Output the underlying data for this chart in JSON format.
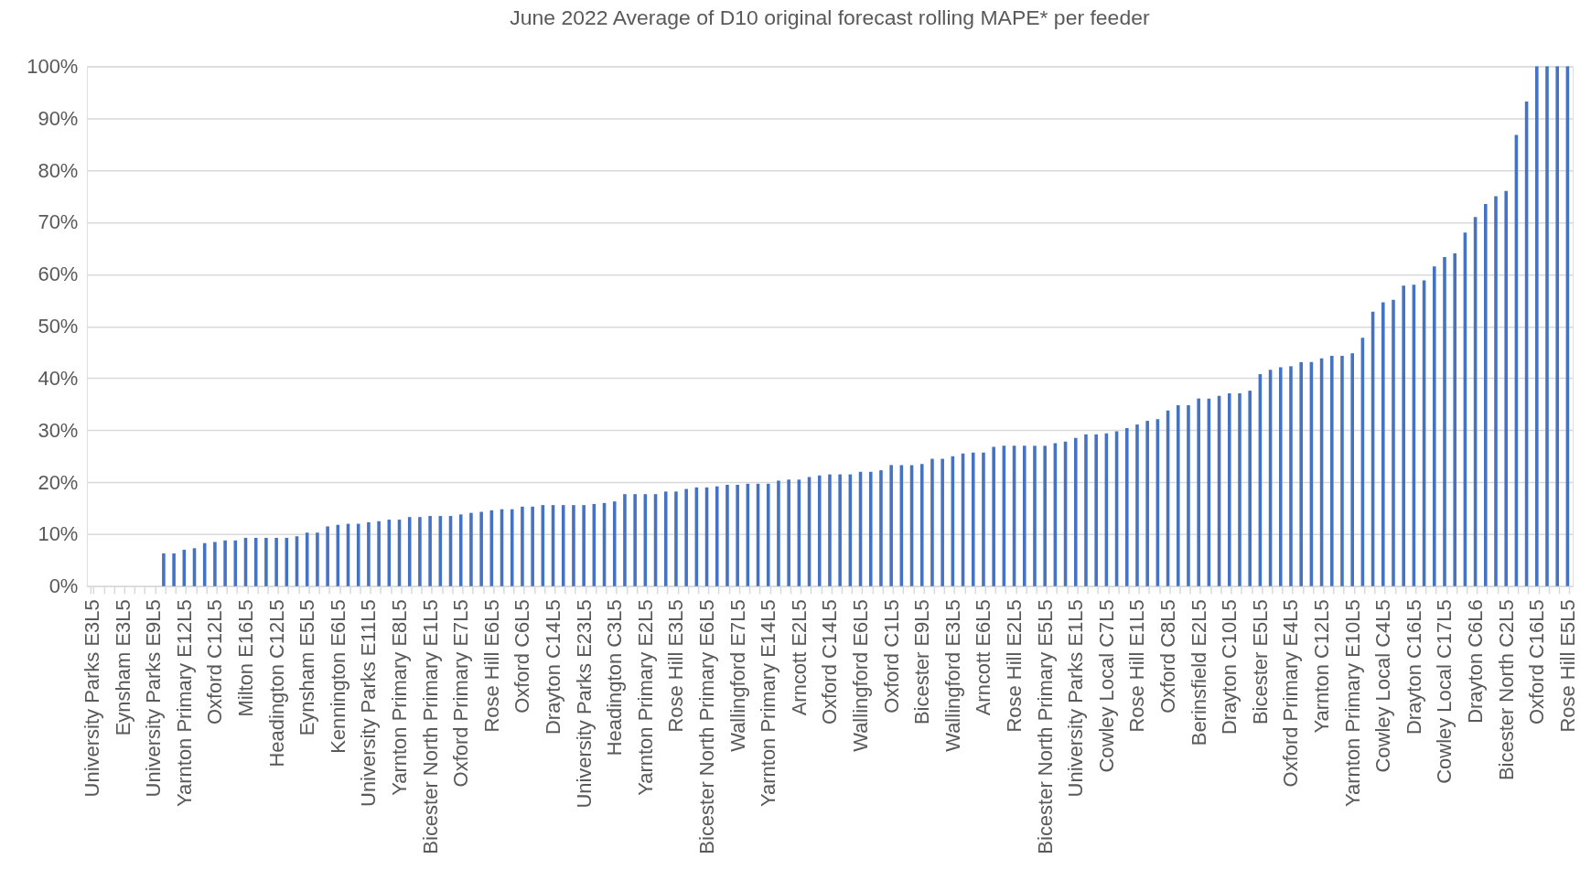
{
  "chart_data": {
    "type": "bar",
    "title": "June 2022 Average of D10 original forecast rolling MAPE* per feeder",
    "categories": [
      "University Parks E3L5",
      null,
      null,
      "Eynsham E3L5",
      null,
      null,
      "University Parks E9L5",
      null,
      null,
      "Yarnton Primary E12L5",
      null,
      null,
      "Oxford C12L5",
      null,
      null,
      "Milton E16L5",
      null,
      null,
      "Headington C12L5",
      null,
      null,
      "Eynsham E5L5",
      null,
      null,
      "Kennington E6L5",
      null,
      null,
      "University Parks E11L5",
      null,
      null,
      "Yarnton Primary E8L5",
      null,
      null,
      "Bicester North Primary E1L5",
      null,
      null,
      "Oxford Primary E7L5",
      null,
      null,
      "Rose Hill E6L5",
      null,
      null,
      "Oxford C6L5",
      null,
      null,
      "Drayton C14L5",
      null,
      null,
      "University Parks E23L5",
      null,
      null,
      "Headington C3L5",
      null,
      null,
      "Yarnton Primary E2L5",
      null,
      null,
      "Rose Hill E3L5",
      null,
      null,
      "Bicester North Primary E6L5",
      null,
      null,
      "Wallingford E7L5",
      null,
      null,
      "Yarnton Primary E14L5",
      null,
      null,
      "Arncott E2L5",
      null,
      null,
      "Oxford C14L5",
      null,
      null,
      "Wallingford E6L5",
      null,
      null,
      "Oxford C1L5",
      null,
      null,
      "Bicester E9L5",
      null,
      null,
      "Wallingford E3L5",
      null,
      null,
      "Arncott E6L5",
      null,
      null,
      "Rose Hill E2L5",
      null,
      null,
      "Bicester North Primary E5L5",
      null,
      null,
      "University Parks E1L5",
      null,
      null,
      "Cowley Local C7L5",
      null,
      null,
      "Rose Hill E1L5",
      null,
      null,
      "Oxford C8L5",
      null,
      null,
      "Berinsfield E2L5",
      null,
      null,
      "Drayton C10L5",
      null,
      null,
      "Bicester E5L5",
      null,
      null,
      "Oxford Primary E4L5",
      null,
      null,
      "Yarnton C12L5",
      null,
      null,
      "Yarnton Primary E10L5",
      null,
      null,
      "Cowley Local C4L5",
      null,
      null,
      "Drayton C16L5",
      null,
      null,
      "Cowley Local C17L5",
      null,
      null,
      "Drayton C6L6",
      null,
      null,
      "Bicester North C2L5",
      null,
      null,
      "Oxford C16L5",
      null,
      null,
      "Rose Hill E5L5"
    ],
    "values": [
      0,
      0,
      0,
      0,
      0,
      0,
      0,
      6.3,
      6.3,
      7.0,
      7.3,
      8.3,
      8.5,
      8.8,
      8.8,
      9.3,
      9.3,
      9.3,
      9.3,
      9.3,
      9.6,
      10.3,
      10.3,
      11.5,
      11.8,
      12.0,
      12.0,
      12.3,
      12.5,
      12.8,
      12.8,
      13.3,
      13.3,
      13.5,
      13.5,
      13.5,
      13.8,
      14.1,
      14.3,
      14.6,
      14.8,
      14.8,
      15.3,
      15.3,
      15.6,
      15.6,
      15.6,
      15.6,
      15.6,
      15.8,
      16.0,
      16.3,
      17.7,
      17.7,
      17.7,
      17.7,
      18.2,
      18.2,
      18.7,
      19.0,
      19.0,
      19.2,
      19.5,
      19.5,
      19.7,
      19.7,
      19.7,
      20.3,
      20.5,
      20.5,
      21.0,
      21.3,
      21.5,
      21.5,
      21.5,
      22.0,
      22.0,
      22.3,
      23.3,
      23.3,
      23.3,
      23.5,
      24.5,
      24.5,
      25.0,
      25.5,
      25.7,
      25.7,
      26.8,
      27.0,
      27.0,
      27.0,
      27.0,
      27.0,
      27.5,
      27.8,
      28.5,
      29.2,
      29.2,
      29.4,
      29.8,
      30.4,
      31.1,
      31.8,
      32.1,
      33.8,
      34.8,
      34.8,
      36.1,
      36.1,
      36.6,
      37.1,
      37.1,
      37.6,
      40.8,
      41.6,
      42.1,
      42.3,
      43.1,
      43.1,
      43.8,
      44.3,
      44.3,
      44.8,
      47.8,
      52.8,
      54.6,
      55.1,
      57.8,
      58.0,
      58.8,
      61.5,
      63.3,
      64.0,
      68.0,
      71.0,
      73.5,
      75.0,
      76.0,
      86.8,
      93.2,
      100,
      100,
      100,
      100
    ],
    "color": "#4472c4",
    "ylim": [
      0,
      100
    ],
    "yticks": [
      {
        "value": 0,
        "label": "0%"
      },
      {
        "value": 10,
        "label": "10%"
      },
      {
        "value": 20,
        "label": "20%"
      },
      {
        "value": 30,
        "label": "30%"
      },
      {
        "value": 40,
        "label": "40%"
      },
      {
        "value": 50,
        "label": "50%"
      },
      {
        "value": 60,
        "label": "60%"
      },
      {
        "value": 70,
        "label": "70%"
      },
      {
        "value": 80,
        "label": "80%"
      },
      {
        "value": 90,
        "label": "90%"
      },
      {
        "value": 100,
        "label": "100%"
      }
    ],
    "grid": "y"
  }
}
